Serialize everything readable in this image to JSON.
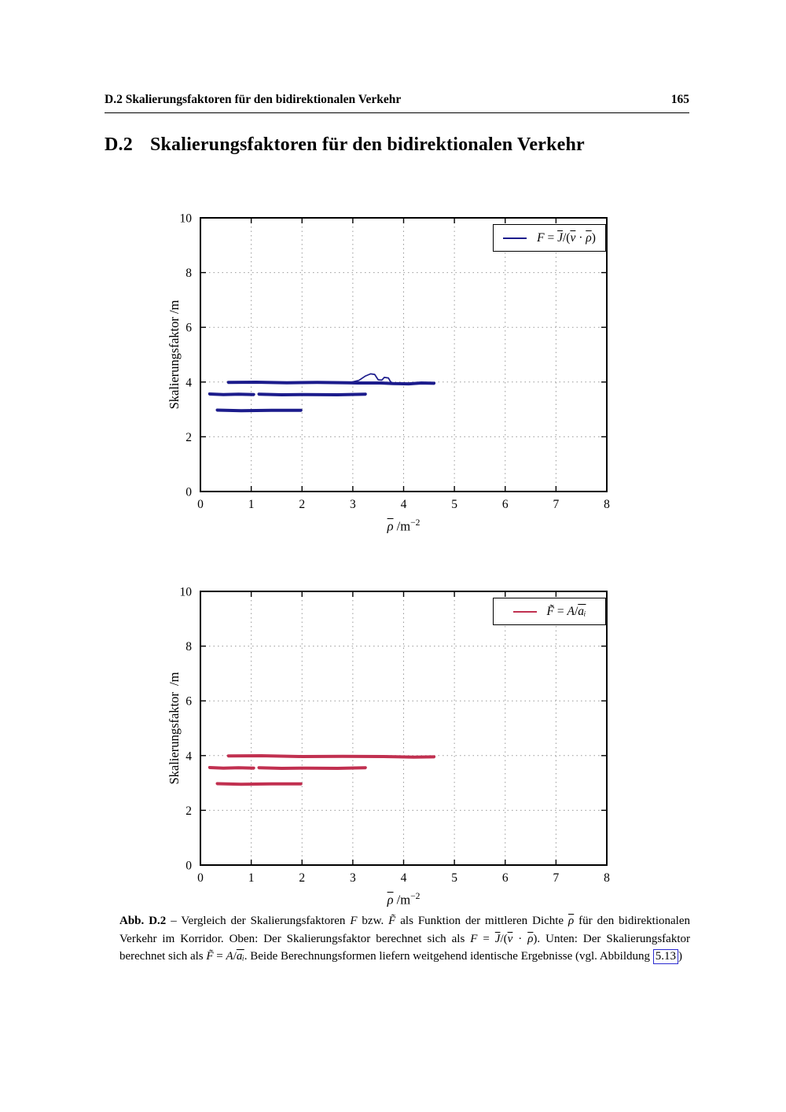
{
  "header": {
    "left": "D.2 Skalierungsfaktoren für den bidirektionalen Verkehr",
    "page_number": "165"
  },
  "section": {
    "number": "D.2",
    "title": "Skalierungsfaktoren für den bidirektionalen Verkehr"
  },
  "chart_data": [
    {
      "type": "line",
      "title": "",
      "ylabel": "Skalierungsfaktor /m",
      "xlabel_runs": [
        {
          "t": "ρ",
          "i": true,
          "ol": true
        },
        {
          "t": "   /m"
        },
        {
          "t": "−2",
          "sup": true
        }
      ],
      "xlim": [
        0,
        8
      ],
      "ylim": [
        0,
        10
      ],
      "xticks": [
        0,
        1,
        2,
        3,
        4,
        5,
        6,
        7,
        8
      ],
      "yticks": [
        0,
        2,
        4,
        6,
        8,
        10
      ],
      "grid": true,
      "color": "#1c1c8c",
      "legend": {
        "position": "top-right",
        "text": "F = J̄/(v̄ · ρ̄)",
        "runs": [
          {
            "t": "F",
            "i": true
          },
          {
            "t": " = "
          },
          {
            "t": "J",
            "i": true,
            "ol": true
          },
          {
            "t": "/("
          },
          {
            "t": "v",
            "i": true,
            "ol": true
          },
          {
            "t": " · "
          },
          {
            "t": "ρ",
            "i": true,
            "ol": true
          },
          {
            "t": ")"
          }
        ]
      },
      "series": [
        {
          "name": "F band near 4.0",
          "stroke": "thick",
          "points": [
            [
              0.55,
              3.99
            ],
            [
              1.1,
              4.0
            ],
            [
              1.7,
              3.98
            ],
            [
              2.3,
              3.99
            ],
            [
              2.9,
              3.98
            ],
            [
              3.1,
              3.97
            ],
            [
              3.55,
              3.97
            ],
            [
              3.8,
              3.95
            ],
            [
              4.1,
              3.94
            ],
            [
              4.35,
              3.97
            ],
            [
              4.6,
              3.96
            ]
          ]
        },
        {
          "name": "F bump near x=3.4",
          "stroke": "thin",
          "points": [
            [
              2.98,
              4.0
            ],
            [
              3.12,
              4.06
            ],
            [
              3.25,
              4.22
            ],
            [
              3.35,
              4.3
            ],
            [
              3.43,
              4.28
            ],
            [
              3.5,
              4.08
            ],
            [
              3.57,
              4.07
            ],
            [
              3.62,
              4.17
            ],
            [
              3.7,
              4.15
            ],
            [
              3.74,
              4.02
            ],
            [
              3.78,
              3.96
            ]
          ]
        },
        {
          "name": "F band near 3.55 (left segment)",
          "stroke": "thick",
          "points": [
            [
              0.18,
              3.57
            ],
            [
              0.45,
              3.55
            ],
            [
              0.75,
              3.56
            ],
            [
              1.05,
              3.55
            ]
          ]
        },
        {
          "name": "F band near 3.55 (right segment)",
          "stroke": "thick",
          "points": [
            [
              1.15,
              3.56
            ],
            [
              1.6,
              3.54
            ],
            [
              2.1,
              3.55
            ],
            [
              2.7,
              3.54
            ],
            [
              3.25,
              3.56
            ]
          ]
        },
        {
          "name": "F band near 2.97",
          "stroke": "thick",
          "points": [
            [
              0.33,
              2.98
            ],
            [
              0.8,
              2.96
            ],
            [
              1.4,
              2.97
            ],
            [
              1.98,
              2.97
            ]
          ]
        }
      ]
    },
    {
      "type": "line",
      "title": "",
      "ylabel": "Skalierungsfaktor  /m",
      "xlabel_runs": [
        {
          "t": "ρ",
          "i": true,
          "ol": true
        },
        {
          "t": "   /m"
        },
        {
          "t": "−2",
          "sup": true
        }
      ],
      "xlim": [
        0,
        8
      ],
      "ylim": [
        0,
        10
      ],
      "xticks": [
        0,
        1,
        2,
        3,
        4,
        5,
        6,
        7,
        8
      ],
      "yticks": [
        0,
        2,
        4,
        6,
        8,
        10
      ],
      "grid": true,
      "color": "#c13050",
      "legend": {
        "position": "top-right",
        "text": "F̃ = A/āᵢ",
        "runs": [
          {
            "t": "F̃",
            "i": true
          },
          {
            "t": " = "
          },
          {
            "t": "A",
            "i": true
          },
          {
            "t": "/"
          },
          {
            "t": "aᵢ",
            "i": true,
            "ol": true
          }
        ]
      },
      "series": [
        {
          "name": "F̃ band near 4.0",
          "stroke": "thick",
          "points": [
            [
              0.55,
              3.99
            ],
            [
              1.2,
              4.0
            ],
            [
              2.0,
              3.97
            ],
            [
              2.8,
              3.98
            ],
            [
              3.6,
              3.97
            ],
            [
              4.2,
              3.95
            ],
            [
              4.6,
              3.96
            ]
          ]
        },
        {
          "name": "F̃ band near 3.55 (left segment)",
          "stroke": "thick",
          "points": [
            [
              0.18,
              3.57
            ],
            [
              0.45,
              3.55
            ],
            [
              0.75,
              3.56
            ],
            [
              1.05,
              3.55
            ]
          ]
        },
        {
          "name": "F̃ band near 3.55 (right segment)",
          "stroke": "thick",
          "points": [
            [
              1.15,
              3.56
            ],
            [
              1.6,
              3.54
            ],
            [
              2.1,
              3.55
            ],
            [
              2.7,
              3.54
            ],
            [
              3.25,
              3.56
            ]
          ]
        },
        {
          "name": "F̃ band near 2.97",
          "stroke": "thick",
          "points": [
            [
              0.33,
              2.98
            ],
            [
              0.8,
              2.96
            ],
            [
              1.4,
              2.97
            ],
            [
              1.98,
              2.97
            ]
          ]
        }
      ]
    }
  ],
  "caption": {
    "runs": [
      {
        "t": "Abb. D.2",
        "b": true
      },
      {
        "t": " – Vergleich der Skalierungsfaktoren "
      },
      {
        "t": "F",
        "i": true
      },
      {
        "t": " bzw. "
      },
      {
        "t": "F̃",
        "i": true
      },
      {
        "t": " als Funktion der mittleren Dichte "
      },
      {
        "t": "ρ",
        "i": true,
        "ol": true
      },
      {
        "t": " für den bidirektionalen Verkehr im Korridor. Oben: Der Skalierungsfaktor berechnet sich als "
      },
      {
        "t": "F",
        "i": true
      },
      {
        "t": " = "
      },
      {
        "t": "J",
        "i": true,
        "ol": true
      },
      {
        "t": "/("
      },
      {
        "t": "v",
        "i": true,
        "ol": true
      },
      {
        "t": " · "
      },
      {
        "t": "ρ",
        "i": true,
        "ol": true
      },
      {
        "t": "). Unten: Der Skalierungsfaktor berechnet sich als "
      },
      {
        "t": "F̃",
        "i": true
      },
      {
        "t": " = "
      },
      {
        "t": "A",
        "i": true
      },
      {
        "t": "/"
      },
      {
        "t": "aᵢ",
        "i": true,
        "ol": true
      },
      {
        "t": ". Beide Berechnungsformen liefern weitgehend identische Ergebnisse (vgl. Abbildung "
      },
      {
        "t": "5.13",
        "link": true
      },
      {
        "t": ")"
      }
    ]
  }
}
